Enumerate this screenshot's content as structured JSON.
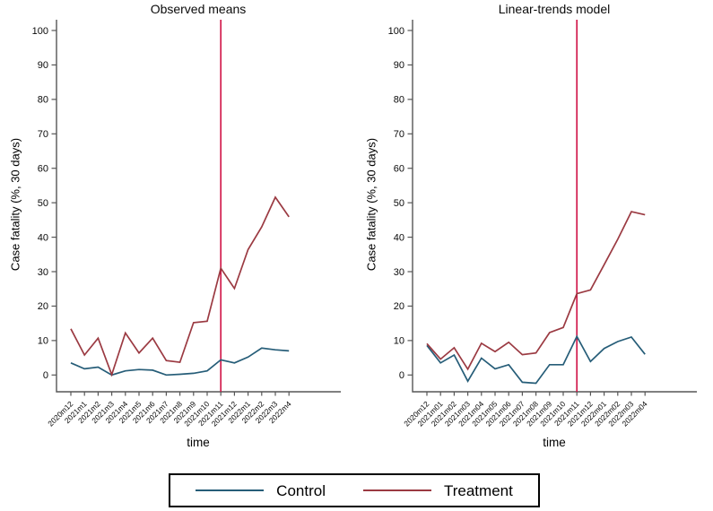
{
  "legend": {
    "items": [
      {
        "label": "Control",
        "color": "#265d78"
      },
      {
        "label": "Treatment",
        "color": "#9b3a42"
      }
    ]
  },
  "colors": {
    "axis": "#565656",
    "control": "#265d78",
    "treatment": "#9b3a42",
    "vline": "#d01245"
  },
  "chart_data": [
    {
      "type": "line",
      "title": "Observed means",
      "xlabel": "time",
      "ylabel": "Case fatality (%, 30 days)",
      "ylim": [
        0,
        100
      ],
      "yticks": [
        0,
        10,
        20,
        30,
        40,
        50,
        60,
        70,
        80,
        90,
        100
      ],
      "grid": false,
      "legend_position": "bottom",
      "x_tick_labels": [
        "2020m12",
        "2021m1",
        "2021m2",
        "2021m3",
        "2021m4",
        "2021m5",
        "2021m6",
        "2021m7",
        "2021m8",
        "2021m9",
        "2021m10",
        "2021m11",
        "2021m12",
        "2022m1",
        "2022m2",
        "2022m3",
        "2022m4"
      ],
      "vline": {
        "x_index": 11,
        "x_label": "2021m11",
        "color": "#d01245"
      },
      "series": [
        {
          "name": "Control",
          "color": "#265d78",
          "values": [
            3.5,
            1.8,
            2.3,
            0,
            1.2,
            1.6,
            1.4,
            0,
            0.2,
            0.5,
            1.2,
            4.4,
            3.5,
            5.2,
            7.8,
            7.3,
            7.0
          ]
        },
        {
          "name": "Treatment",
          "color": "#9b3a42",
          "values": [
            13.4,
            5.8,
            10.7,
            0.1,
            12.2,
            6.4,
            10.7,
            4.2,
            3.7,
            15.2,
            15.6,
            31.0,
            25.1,
            36.4,
            43.0,
            51.6,
            45.9
          ]
        }
      ]
    },
    {
      "type": "line",
      "title": "Linear-trends model",
      "xlabel": "time",
      "ylabel": "Case fatality (%, 30 days)",
      "ylim": [
        0,
        100
      ],
      "yticks": [
        0,
        10,
        20,
        30,
        40,
        50,
        60,
        70,
        80,
        90,
        100
      ],
      "grid": false,
      "legend_position": "bottom",
      "x_tick_labels": [
        "2020m12",
        "2021m01",
        "2021m02",
        "2021m03",
        "2021m04",
        "2021m05",
        "2021m06",
        "2021m07",
        "2021m08",
        "2021m09",
        "2021m10",
        "2021m11",
        "2021m12",
        "2022m01",
        "2022m02",
        "2022m03",
        "2022m04"
      ],
      "vline": {
        "x_index": 11,
        "x_label": "2021m11",
        "color": "#d01245"
      },
      "series": [
        {
          "name": "Control",
          "color": "#265d78",
          "values": [
            8.6,
            3.5,
            5.8,
            -1.8,
            4.9,
            1.8,
            3.0,
            -2.1,
            -2.4,
            3.0,
            3.0,
            11.2,
            3.9,
            7.7,
            9.7,
            11.0,
            6.0
          ]
        },
        {
          "name": "Treatment",
          "color": "#9b3a42",
          "values": [
            9.1,
            4.6,
            7.9,
            1.7,
            9.2,
            6.8,
            9.5,
            5.9,
            6.4,
            12.3,
            13.8,
            23.6,
            24.7,
            32.0,
            39.4,
            47.4,
            46.5
          ]
        }
      ]
    }
  ]
}
